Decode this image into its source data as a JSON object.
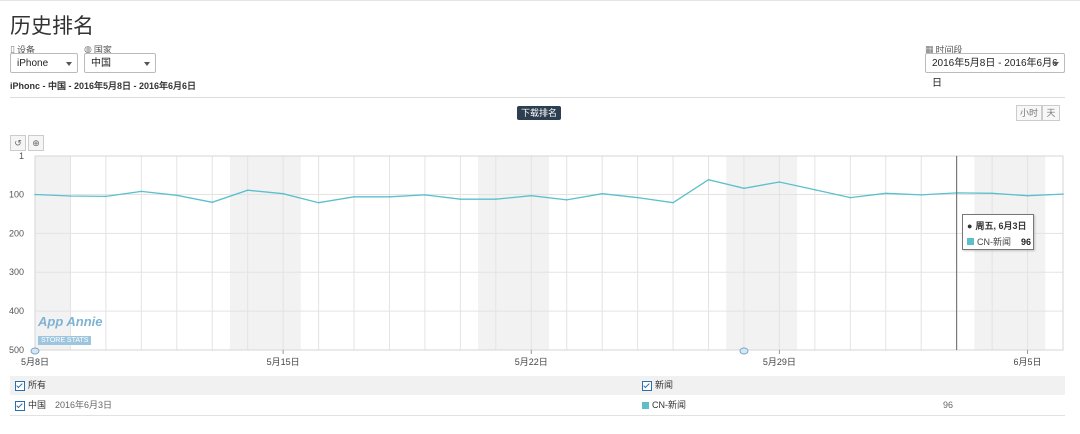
{
  "page": {
    "title": "历史排名"
  },
  "filters": {
    "device": {
      "label": "设备",
      "value": "iPhone"
    },
    "country": {
      "label": "国家",
      "value": "中国"
    },
    "period": {
      "label": "时间段",
      "value": "2016年5月8日 - 2016年6月6日"
    }
  },
  "subtitle": "iPhonc - 中国 - 2016年5月8日 - 2016年6月6日",
  "metric_badge": "下载排名",
  "granularity": {
    "hour": "小时",
    "day": "天"
  },
  "tools": {
    "reset_icon": "undo-icon",
    "zoom_icon": "zoom-icon"
  },
  "chart_data": {
    "type": "line",
    "title": "",
    "xlabel": "",
    "ylabel": "",
    "y_reversed": true,
    "ylim": [
      1,
      500
    ],
    "yticks": [
      1,
      100,
      200,
      300,
      400,
      500
    ],
    "x_tick_labels": [
      "5月8日",
      "5月15日",
      "5月22日",
      "5月29日",
      "6月5日"
    ],
    "grid": true,
    "weekend_shading": true,
    "legend": "bottom",
    "x": [
      "5月8日",
      "5月9日",
      "5月10日",
      "5月11日",
      "5月12日",
      "5月13日",
      "5月14日",
      "5月15日",
      "5月16日",
      "5月17日",
      "5月18日",
      "5月19日",
      "5月20日",
      "5月21日",
      "5月22日",
      "5月23日",
      "5月24日",
      "5月25日",
      "5月26日",
      "5月27日",
      "5月28日",
      "5月29日",
      "5月30日",
      "5月31日",
      "6月1日",
      "6月2日",
      "6月3日",
      "6月4日",
      "6月5日",
      "6月6日"
    ],
    "series": [
      {
        "name": "CN-新闻",
        "color": "#5bc0cc",
        "values": [
          100,
          104,
          105,
          92,
          102,
          120,
          89,
          98,
          121,
          106,
          106,
          101,
          112,
          112,
          103,
          114,
          98,
          108,
          121,
          62,
          84,
          68,
          88,
          108,
          97,
          101,
          96,
          97,
          103,
          99
        ]
      }
    ]
  },
  "tooltip": {
    "date": "周五, 6月3日",
    "series": "CN-新闻",
    "value": "96"
  },
  "watermark": {
    "name": "App Annie",
    "sub": "STORE STATS"
  },
  "legend_table": {
    "all_label": "所有",
    "category_label": "新闻",
    "row": {
      "country": "中国",
      "date": "2016年6月3日",
      "series": "CN-新闻",
      "value": "96"
    }
  }
}
